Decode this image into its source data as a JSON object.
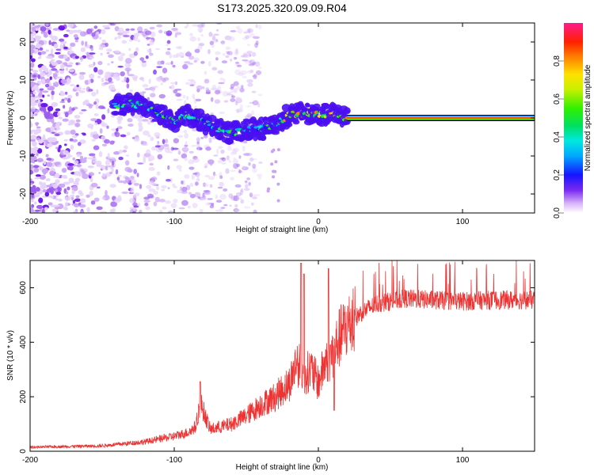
{
  "title": "S173.2025.320.09.09.R04",
  "chart_data": [
    {
      "type": "heatmap",
      "name": "spectrogram",
      "xlabel": "Height of straight line (km)",
      "ylabel": "Frequency (Hz)",
      "xlim": [
        -200,
        150
      ],
      "ylim": [
        -25,
        25
      ],
      "xticks": [
        -200,
        -100,
        0,
        100
      ],
      "yticks": [
        -20,
        -10,
        0,
        10,
        20
      ],
      "colorbar": {
        "label": "Normalized spectral amplitude",
        "range": [
          0,
          1
        ],
        "ticks": [
          0.0,
          0.2,
          0.4,
          0.6,
          0.8
        ]
      },
      "ridge": {
        "x": [
          -140,
          -130,
          -120,
          -110,
          -100,
          -90,
          -80,
          -70,
          -60,
          -50,
          -40,
          -30,
          -20,
          -10,
          0,
          10,
          20,
          150
        ],
        "freq": [
          3,
          4,
          3,
          1,
          -1,
          1,
          -1,
          -3,
          -4,
          -3,
          -3,
          -2,
          1,
          1,
          1,
          1,
          0,
          0
        ]
      },
      "steady_tone": {
        "x_start": 20,
        "x_end": 150,
        "freq": 0
      }
    },
    {
      "type": "line",
      "name": "snr",
      "xlabel": "Height of straight line (km)",
      "ylabel": "SNR (10 * v/v)",
      "xlim": [
        -200,
        150
      ],
      "ylim": [
        0,
        700
      ],
      "xticks": [
        -200,
        -100,
        0,
        100
      ],
      "yticks": [
        0,
        200,
        400,
        600
      ],
      "color": "#ee3333",
      "envelope": {
        "x": [
          -200,
          -150,
          -120,
          -100,
          -90,
          -85,
          -82,
          -75,
          -60,
          -50,
          -40,
          -30,
          -20,
          -15,
          -10,
          -5,
          0,
          5,
          10,
          15,
          20,
          30,
          40,
          60,
          80,
          100,
          120,
          150
        ],
        "y": [
          15,
          20,
          35,
          55,
          70,
          90,
          180,
          80,
          100,
          130,
          170,
          200,
          250,
          330,
          280,
          300,
          250,
          330,
          360,
          420,
          460,
          510,
          540,
          560,
          555,
          550,
          555,
          555
        ]
      },
      "spikes": [
        {
          "x": -82,
          "y": 255
        },
        {
          "x": -12,
          "y": 690
        },
        {
          "x": -10,
          "y": 650
        },
        {
          "x": 7,
          "y": 670
        },
        {
          "x": 11,
          "y": 150
        }
      ]
    }
  ]
}
